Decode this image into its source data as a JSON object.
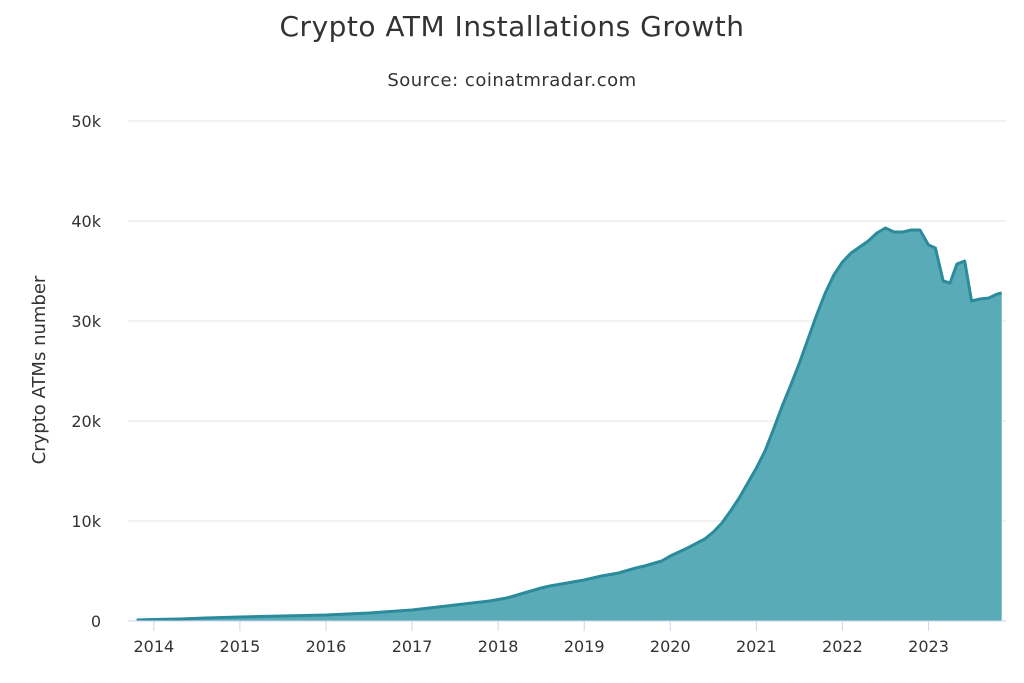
{
  "chart_data": {
    "type": "area",
    "title": "Crypto ATM Installations Growth",
    "subtitle": "Source: coinatmradar.com",
    "xlabel": "",
    "ylabel": "Crypto ATMs number",
    "xlim": [
      2013.7,
      2023.9
    ],
    "ylim": [
      0,
      50000
    ],
    "x_tick_labels": [
      "2014",
      "2015",
      "2016",
      "2017",
      "2018",
      "2019",
      "2020",
      "2021",
      "2022",
      "2023"
    ],
    "y_tick_labels": [
      "0",
      "10k",
      "20k",
      "30k",
      "40k",
      "50k"
    ],
    "grid": true,
    "legend": "none",
    "color": "#5aabb8",
    "line_color": "#2b8b9b",
    "series": [
      {
        "x": [
          2013.8,
          2014.0,
          2014.3,
          2014.6,
          2015.0,
          2015.5,
          2016.0,
          2016.5,
          2017.0,
          2017.3,
          2017.6,
          2017.9,
          2018.1,
          2018.3,
          2018.5,
          2018.6,
          2018.8,
          2019.0,
          2019.2,
          2019.4,
          2019.6,
          2019.7,
          2019.9,
          2020.0,
          2020.2,
          2020.4,
          2020.5,
          2020.6,
          2020.7,
          2020.8,
          2020.9,
          2021.0,
          2021.1,
          2021.2,
          2021.3,
          2021.4,
          2021.5,
          2021.6,
          2021.7,
          2021.8,
          2021.9,
          2022.0,
          2022.1,
          2022.2,
          2022.3,
          2022.4,
          2022.5,
          2022.6,
          2022.7,
          2022.8,
          2022.9,
          2023.0,
          2023.08,
          2023.17,
          2023.25,
          2023.33,
          2023.42,
          2023.5,
          2023.6,
          2023.7,
          2023.8,
          2023.85
        ],
        "y": [
          100,
          150,
          200,
          300,
          400,
          500,
          600,
          800,
          1100,
          1400,
          1700,
          2000,
          2300,
          2800,
          3300,
          3500,
          3800,
          4100,
          4500,
          4800,
          5300,
          5500,
          6000,
          6500,
          7300,
          8200,
          8900,
          9800,
          11000,
          12300,
          13800,
          15300,
          17000,
          19200,
          21500,
          23600,
          25800,
          28200,
          30600,
          32800,
          34600,
          35900,
          36800,
          37400,
          38000,
          38800,
          39300,
          38900,
          38900,
          39100,
          39100,
          37600,
          37300,
          34000,
          33800,
          35700,
          36000,
          32000,
          32200,
          32300,
          32700,
          32800
        ]
      }
    ]
  }
}
